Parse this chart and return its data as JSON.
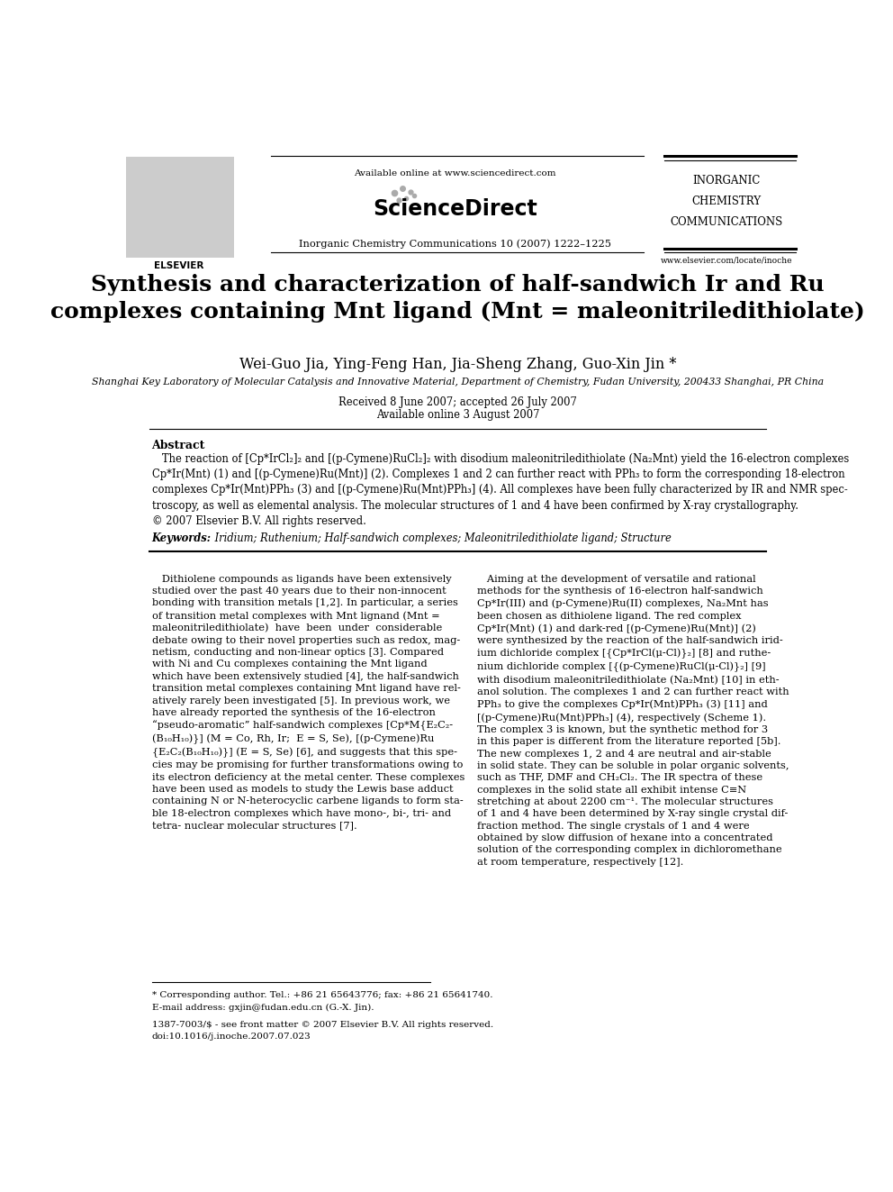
{
  "bg_color": "#ffffff",
  "page_width": 9.92,
  "page_height": 13.23,
  "header": {
    "available_online": "Available online at www.sciencedirect.com",
    "journal_line": "Inorganic Chemistry Communications 10 (2007) 1222–1225",
    "sciencedirect_text": "ScienceDirect",
    "journal_name_line1": "INORGANIC",
    "journal_name_line2": "CHEMISTRY",
    "journal_name_line3": "COMMUNICATIONS",
    "website": "www.elsevier.com/locate/inoche"
  },
  "title": "Synthesis and characterization of half-sandwich Ir and Ru\ncomplexes containing Mnt ligand (Mnt = maleonitriledithiolate)",
  "authors": "Wei-Guo Jia, Ying-Feng Han, Jia-Sheng Zhang, Guo-Xin Jin *",
  "affiliation": "Shanghai Key Laboratory of Molecular Catalysis and Innovative Material, Department of Chemistry, Fudan University, 200433 Shanghai, PR China",
  "received": "Received 8 June 2007; accepted 26 July 2007",
  "available_online_date": "Available online 3 August 2007",
  "abstract_label": "Abstract",
  "abstract_text": "   The reaction of [Cp*IrCl₂]₂ and [(p-Cymene)RuCl₂]₂ with disodium maleonitriledithiolate (Na₂Mnt) yield the 16-electron complexes\nCp*Ir(Mnt) (1) and [(p-Cymene)Ru(Mnt)] (2). Complexes 1 and 2 can further react with PPh₃ to form the corresponding 18-electron\ncomplexes Cp*Ir(Mnt)PPh₃ (3) and [(p-Cymene)Ru(Mnt)PPh₃] (4). All complexes have been fully characterized by IR and NMR spec-\ntroscopy, as well as elemental analysis. The molecular structures of 1 and 4 have been confirmed by X-ray crystallography.\n© 2007 Elsevier B.V. All rights reserved.",
  "keywords_label": "Keywords:",
  "keywords_text": " Iridium; Ruthenium; Half-sandwich complexes; Maleonitriledithiolate ligand; Structure",
  "body_left": "   Dithiolene compounds as ligands have been extensively\nstudied over the past 40 years due to their non-innocent\nbonding with transition metals [1,2]. In particular, a series\nof transition metal complexes with Mnt lignand (Mnt =\nmaleonitriledithiolate)  have  been  under  considerable\ndebate owing to their novel properties such as redox, mag-\nnetism, conducting and non-linear optics [3]. Compared\nwith Ni and Cu complexes containing the Mnt ligand\nwhich have been extensively studied [4], the half-sandwich\ntransition metal complexes containing Mnt ligand have rel-\natively rarely been investigated [5]. In previous work, we\nhave already reported the synthesis of the 16-electron\n“pseudo-aromatic” half-sandwich complexes [Cp*M{E₂C₂-\n(B₁₀H₁₀)}] (M = Co, Rh, Ir;  E = S, Se), [(p-Cymene)Ru\n{E₂C₂(B₁₀H₁₀)}] (E = S, Se) [6], and suggests that this spe-\ncies may be promising for further transformations owing to\nits electron deficiency at the metal center. These complexes\nhave been used as models to study the Lewis base adduct\ncontaining N or N-heterocyclic carbene ligands to form sta-\nble 18-electron complexes which have mono-, bi-, tri- and\ntetra- nuclear molecular structures [7].",
  "body_right": "   Aiming at the development of versatile and rational\nmethods for the synthesis of 16-electron half-sandwich\nCp*Ir(III) and (p-Cymene)Ru(II) complexes, Na₂Mnt has\nbeen chosen as dithiolene ligand. The red complex\nCp*Ir(Mnt) (1) and dark-red [(p-Cymene)Ru(Mnt)] (2)\nwere synthesized by the reaction of the half-sandwich irid-\nium dichloride complex [{Cp*IrCl(μ-Cl)}₂] [8] and ruthe-\nnium dichloride complex [{(p-Cymene)RuCl(μ-Cl)}₂] [9]\nwith disodium maleonitriledithiolate (Na₂Mnt) [10] in eth-\nanol solution. The complexes 1 and 2 can further react with\nPPh₃ to give the complexes Cp*Ir(Mnt)PPh₃ (3) [11] and\n[(p-Cymene)Ru(Mnt)PPh₃] (4), respectively (Scheme 1).\nThe complex 3 is known, but the synthetic method for 3\nin this paper is different from the literature reported [5b].\nThe new complexes 1, 2 and 4 are neutral and air-stable\nin solid state. They can be soluble in polar organic solvents,\nsuch as THF, DMF and CH₂Cl₂. The IR spectra of these\ncomplexes in the solid state all exhibit intense C≡N\nstretching at about 2200 cm⁻¹. The molecular structures\nof 1 and 4 have been determined by X-ray single crystal dif-\nfraction method. The single crystals of 1 and 4 were\nobtained by slow diffusion of hexane into a concentrated\nsolution of the corresponding complex in dichloromethane\nat room temperature, respectively [12].",
  "footnote_star": "* Corresponding author. Tel.: +86 21 65643776; fax: +86 21 65641740.",
  "footnote_email": "E-mail address: gxjin@fudan.edu.cn (G.-X. Jin).",
  "footnote_bottom1": "1387-7003/$ - see front matter © 2007 Elsevier B.V. All rights reserved.",
  "footnote_bottom2": "doi:10.1016/j.inoche.2007.07.023"
}
